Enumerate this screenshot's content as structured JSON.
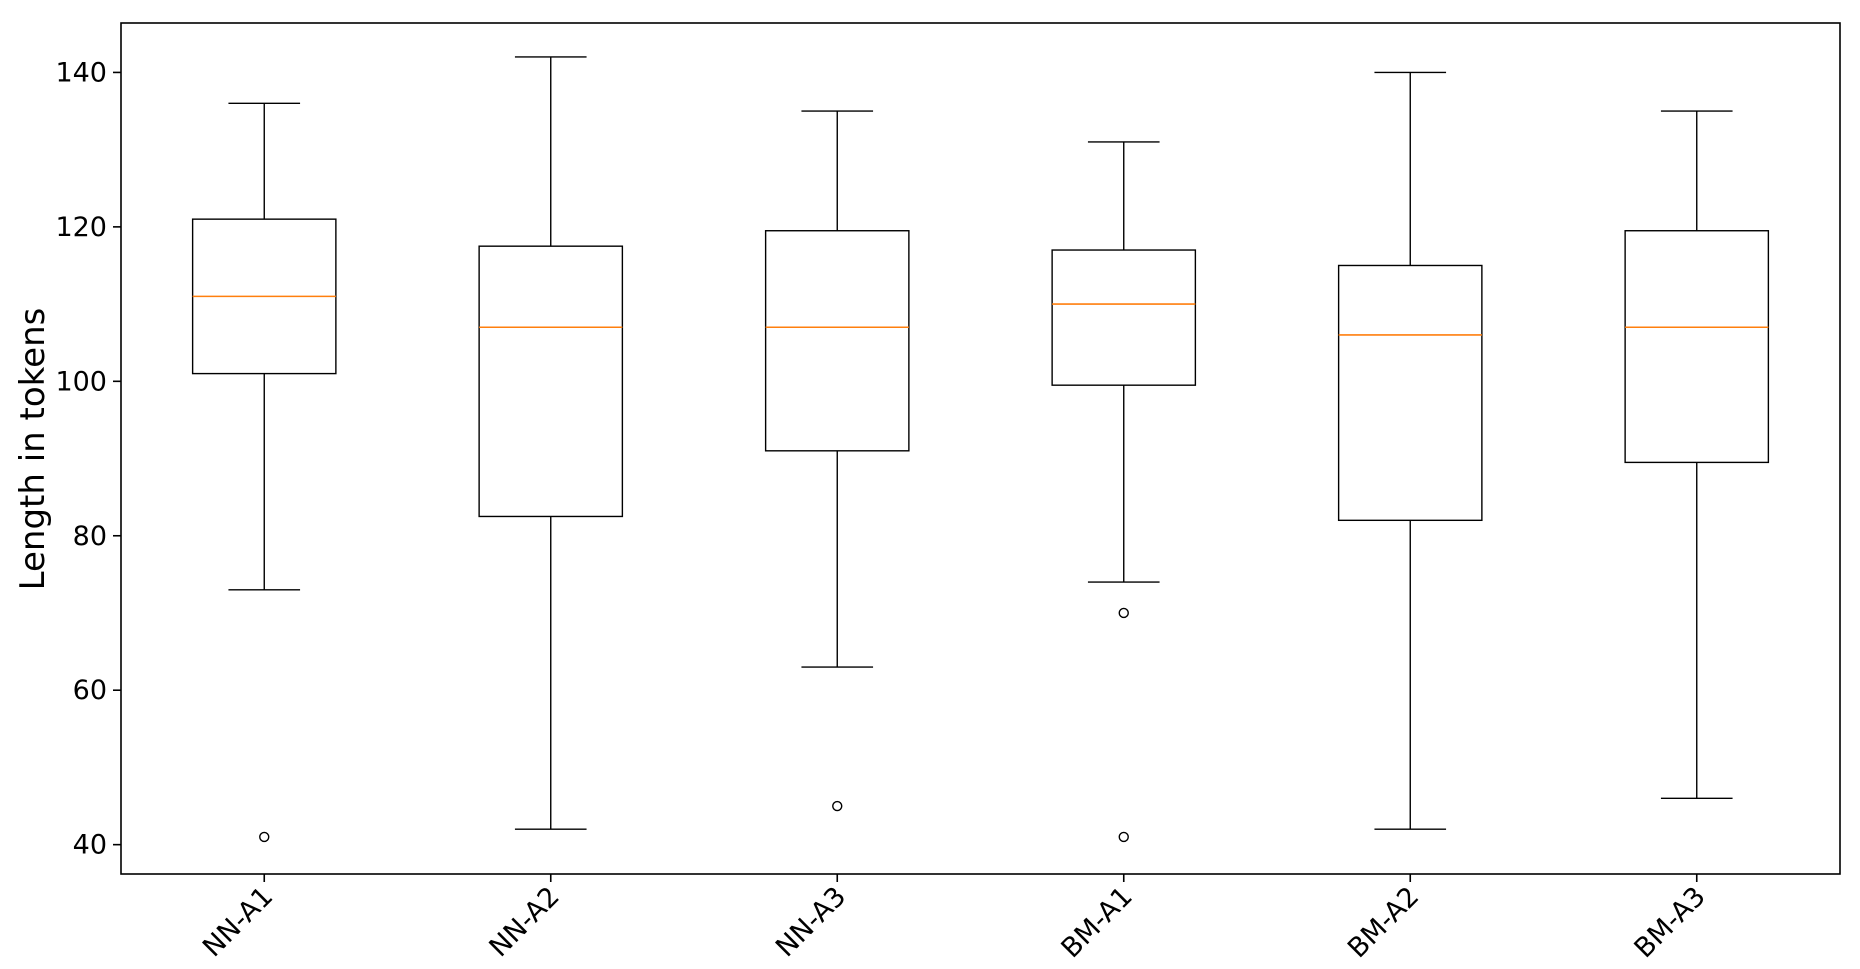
{
  "chart_data": {
    "type": "boxplot",
    "title": "",
    "xlabel": "",
    "ylabel": "Length in tokens",
    "ylim": [
      36.2,
      146.4
    ],
    "yticks": [
      40,
      60,
      80,
      100,
      120,
      140
    ],
    "grid": false,
    "categories": [
      "NN-A1",
      "NN-A2",
      "NN-A3",
      "BM-A1",
      "BM-A2",
      "BM-A3"
    ],
    "boxes": [
      {
        "min": 73,
        "q1": 101,
        "median": 111,
        "q3": 121,
        "max": 136,
        "outliers": [
          41
        ]
      },
      {
        "min": 42,
        "q1": 82.5,
        "median": 107,
        "q3": 117.5,
        "max": 142,
        "outliers": []
      },
      {
        "min": 63,
        "q1": 91,
        "median": 107,
        "q3": 119.5,
        "max": 135,
        "outliers": [
          45
        ]
      },
      {
        "min": 74,
        "q1": 99.5,
        "median": 110,
        "q3": 117,
        "max": 131,
        "outliers": [
          70,
          41
        ]
      },
      {
        "min": 42,
        "q1": 82,
        "median": 106,
        "q3": 115,
        "max": 140,
        "outliers": []
      },
      {
        "min": 46,
        "q1": 89.5,
        "median": 107,
        "q3": 119.5,
        "max": 135,
        "outliers": []
      }
    ],
    "colors": {
      "box": "#000000",
      "median": "#ff7f0e",
      "whisker": "#000000"
    }
  }
}
